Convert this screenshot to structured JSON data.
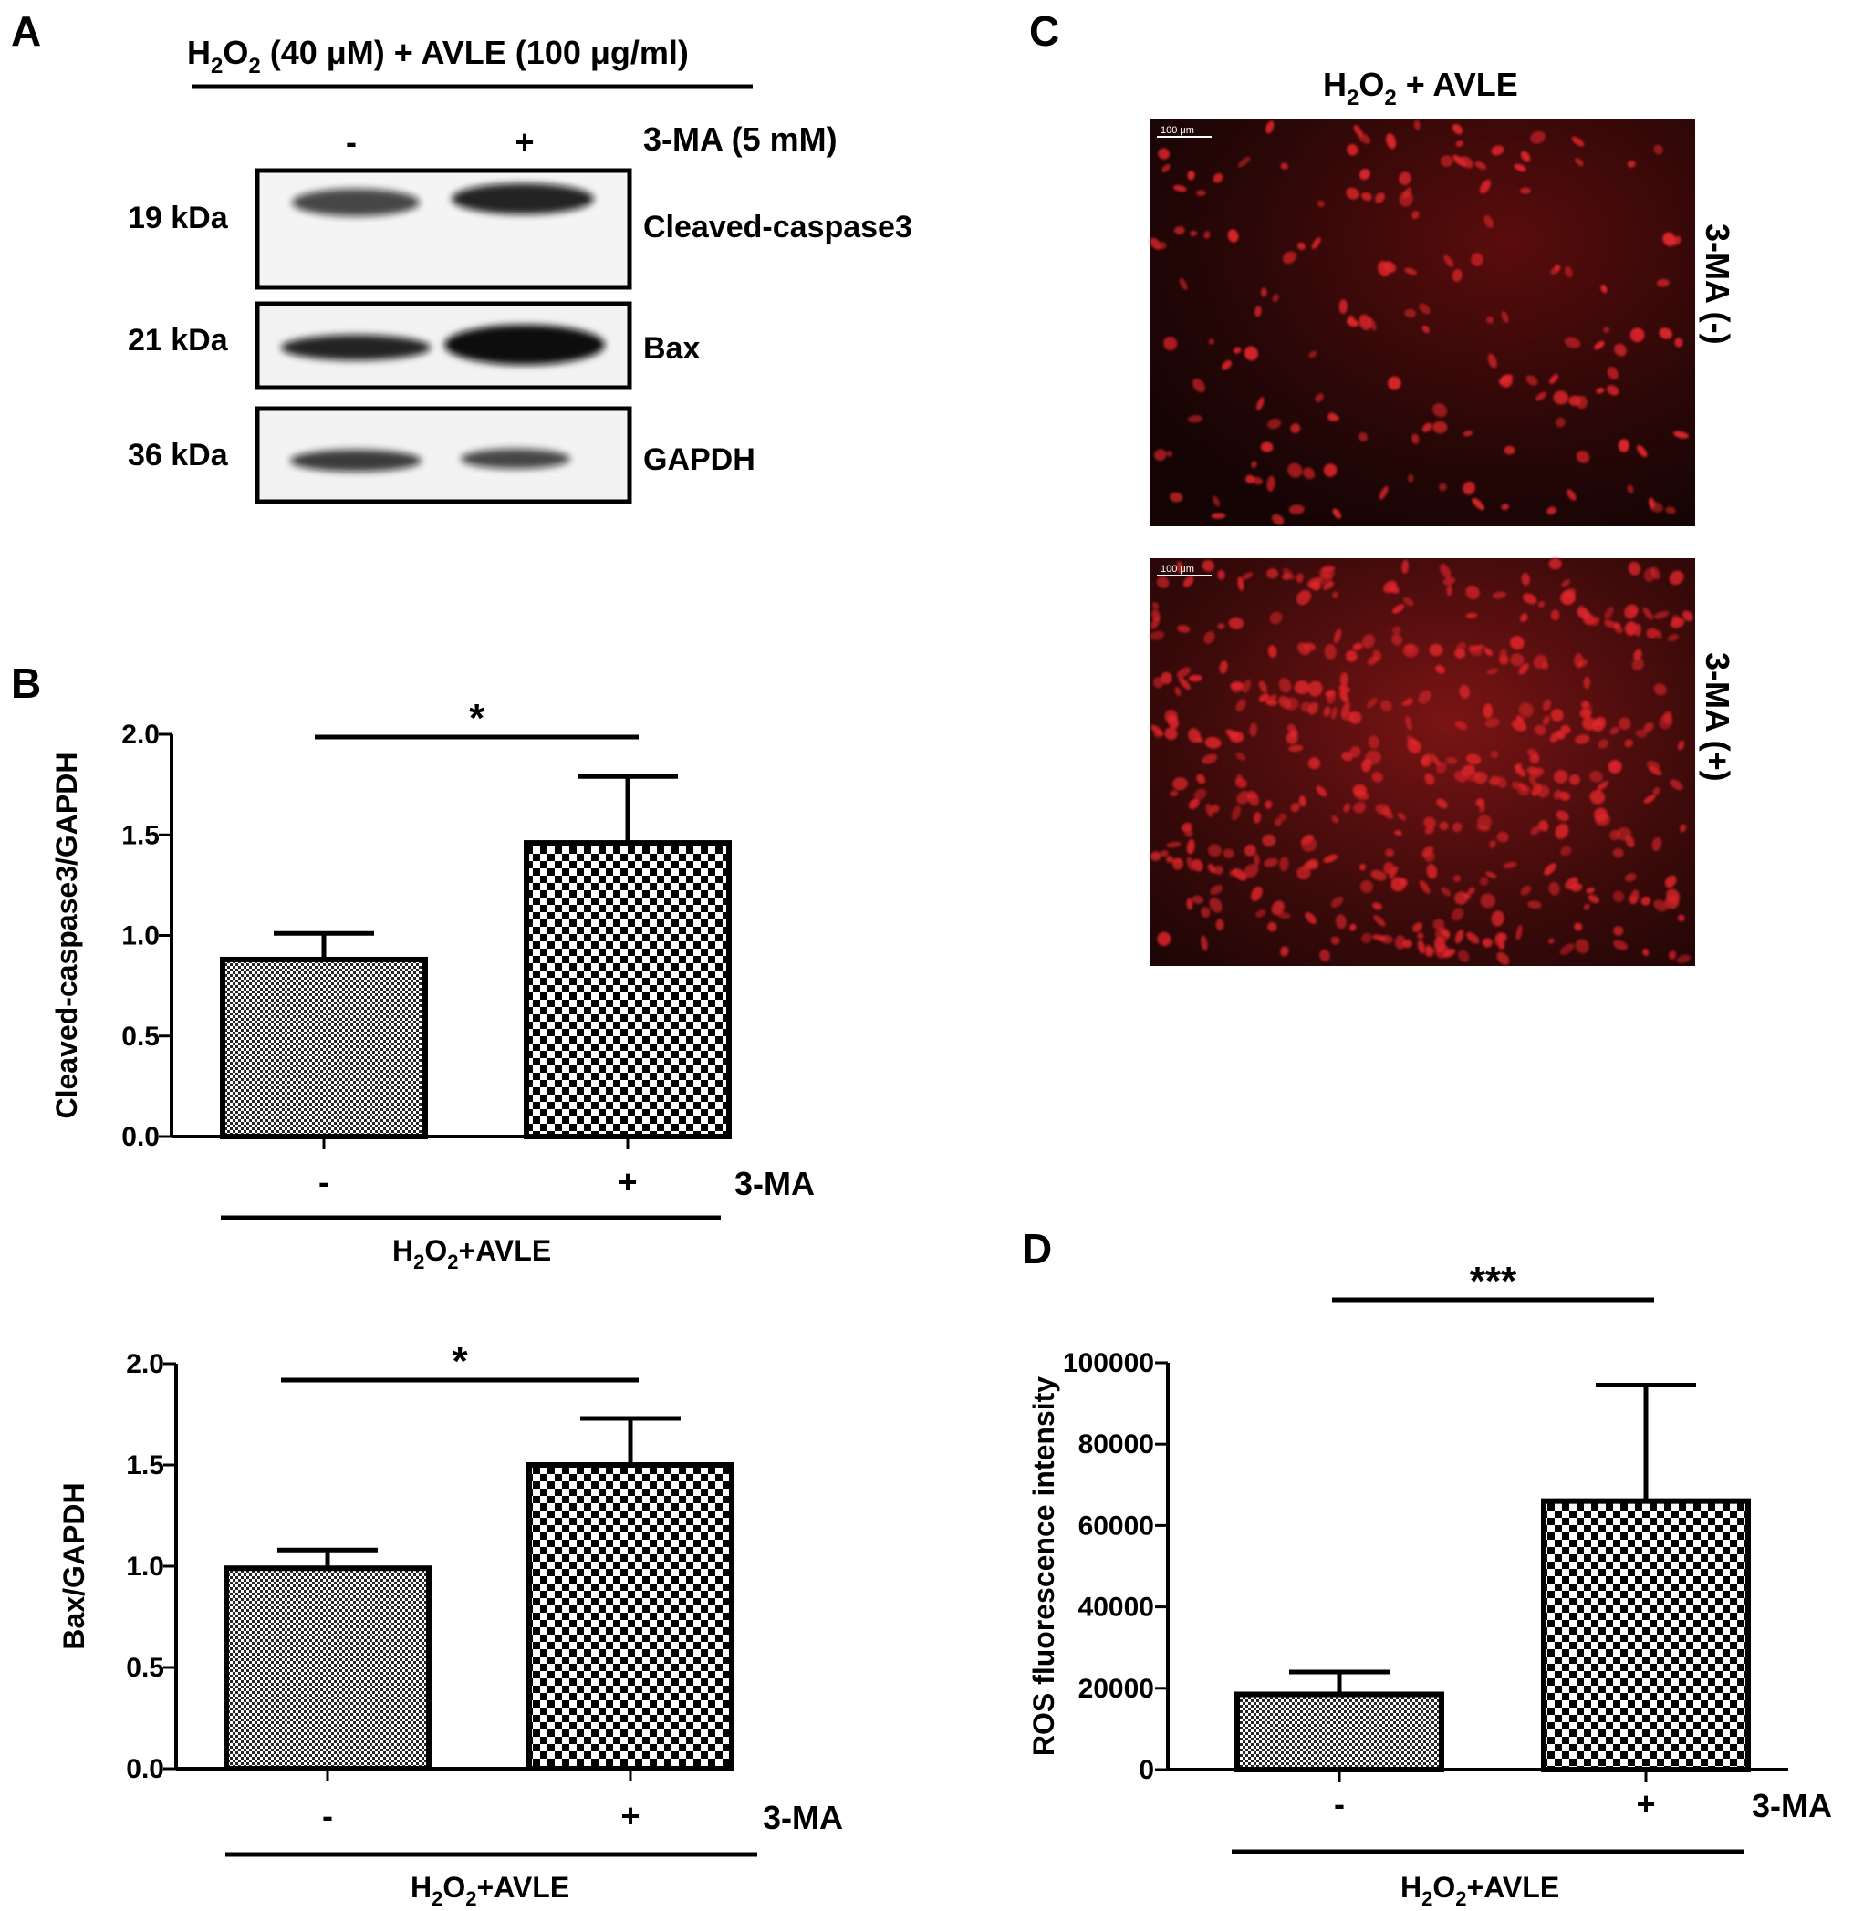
{
  "panels": {
    "A": {
      "letter": "A",
      "treatment": "H2O2 (40 μM) + AVLE (100 μg/ml)",
      "treatment_parts": [
        "H",
        "2",
        "O",
        "2",
        " (40 μM) + AVLE (100 μg/ml)"
      ],
      "lanes": [
        "-",
        "+"
      ],
      "condition": "3-MA (5 mM)",
      "blots": [
        {
          "weight": "19 kDa",
          "protein": "Cleaved-caspase3",
          "band_intensity": [
            0.75,
            0.9
          ]
        },
        {
          "weight": "21 kDa",
          "protein": "Bax",
          "band_intensity": [
            0.85,
            1.0
          ]
        },
        {
          "weight": "36 kDa",
          "protein": "GAPDH",
          "band_intensity": [
            0.8,
            0.75
          ]
        }
      ]
    },
    "B": {
      "letter": "B"
    },
    "C": {
      "letter": "C",
      "title": "H2O2 + AVLE",
      "title_parts": [
        "H",
        "2",
        "O",
        "2",
        " + AVLE"
      ],
      "images": [
        {
          "label": "3-MA (-)",
          "scale_bar": "100 μm"
        },
        {
          "label": "3-MA (+)",
          "scale_bar": "100 μm"
        }
      ]
    },
    "D": {
      "letter": "D"
    }
  },
  "colors": {
    "fluorescence_background": "#1a0606",
    "fluorescence_cells": "#e0262b",
    "bar_outline": "#000000",
    "band": "#111111"
  },
  "chart_data": [
    {
      "id": "B1",
      "type": "bar",
      "categories": [
        "-",
        "+"
      ],
      "values": [
        0.88,
        1.46
      ],
      "errors": [
        0.13,
        0.33
      ],
      "ylabel": "Cleaved-caspase3/GAPDH",
      "ylim": [
        0,
        2.0
      ],
      "yticks": [
        "0.0",
        "0.5",
        "1.0",
        "1.5",
        "2.0"
      ],
      "factor_label": "3-MA",
      "group_label_parts": [
        "H",
        "2",
        "O",
        "2",
        "+AVLE"
      ],
      "significance": "*",
      "patterns": [
        "fine-check",
        "coarse-check"
      ]
    },
    {
      "id": "B2",
      "type": "bar",
      "categories": [
        "-",
        "+"
      ],
      "values": [
        0.99,
        1.5
      ],
      "errors": [
        0.09,
        0.23
      ],
      "ylabel": "Bax/GAPDH",
      "ylim": [
        0,
        2.0
      ],
      "yticks": [
        "0.0",
        "0.5",
        "1.0",
        "1.5",
        "2.0"
      ],
      "factor_label": "3-MA",
      "group_label_parts": [
        "H",
        "2",
        "O",
        "2",
        "+AVLE"
      ],
      "significance": "*",
      "patterns": [
        "fine-check",
        "coarse-check"
      ]
    },
    {
      "id": "D",
      "type": "bar",
      "categories": [
        "-",
        "+"
      ],
      "values": [
        18500,
        66000
      ],
      "errors": [
        5500,
        28500
      ],
      "ylabel": "ROS fluorescence intensity",
      "ylim": [
        0,
        100000
      ],
      "yticks": [
        "0",
        "20000",
        "40000",
        "60000",
        "80000",
        "100000"
      ],
      "factor_label": "3-MA",
      "group_label_parts": [
        "H",
        "2",
        "O",
        "2",
        "+AVLE"
      ],
      "significance": "***",
      "patterns": [
        "fine-check",
        "coarse-check"
      ]
    }
  ]
}
